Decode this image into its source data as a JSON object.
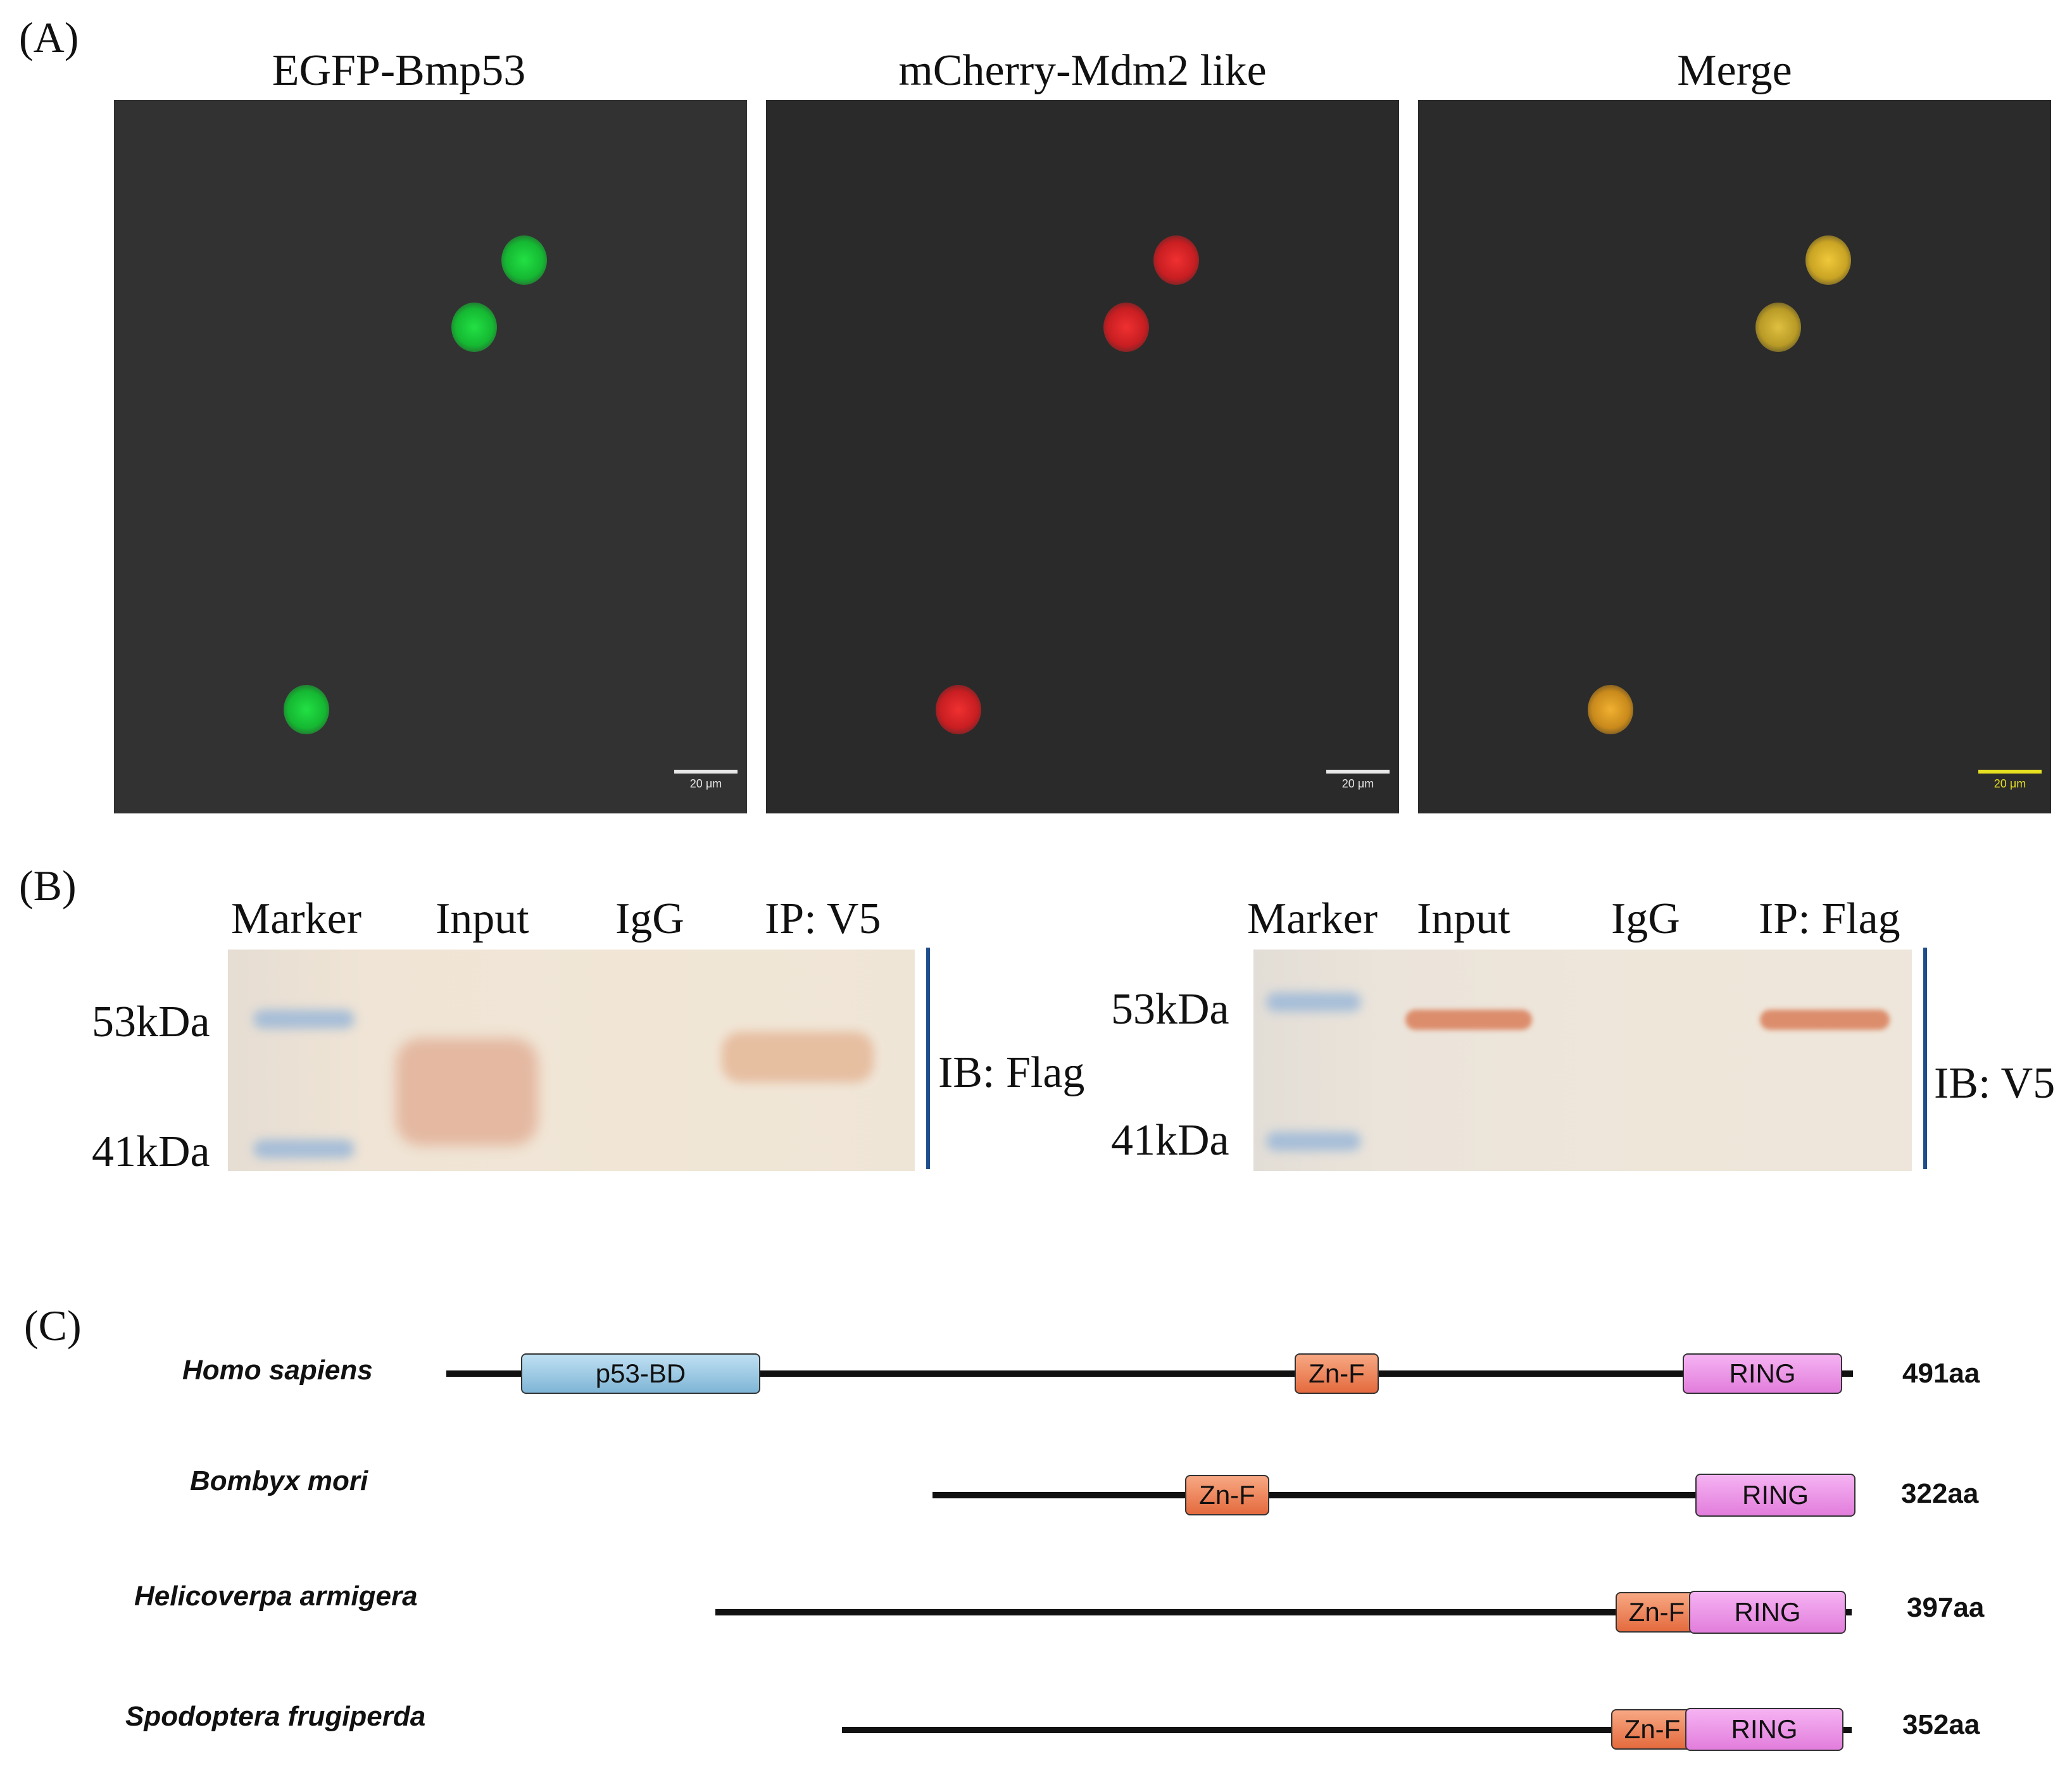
{
  "panels": {
    "a": {
      "label": "(A)",
      "titles": [
        "EGFP-Bmp53",
        "mCherry-Mdm2 like",
        "Merge"
      ],
      "scale_text": "20 μm"
    },
    "b": {
      "label": "(B)",
      "left": {
        "lanes": [
          "Marker",
          "Input",
          "IgG",
          "IP: V5"
        ],
        "markers": [
          "53kDa",
          "41kDa"
        ],
        "ib": "IB: Flag"
      },
      "right": {
        "lanes": [
          "Marker",
          "Input",
          "IgG",
          "IP: Flag"
        ],
        "markers": [
          "53kDa",
          "41kDa"
        ],
        "ib": "IB: V5"
      }
    },
    "c": {
      "label": "(C)",
      "species": [
        {
          "name": "Homo sapiens",
          "length": "491aa",
          "domains": [
            "p53-BD",
            "Zn-F",
            "RING"
          ]
        },
        {
          "name": "Bombyx mori",
          "length": "322aa",
          "domains": [
            "Zn-F",
            "RING"
          ]
        },
        {
          "name": "Helicoverpa armigera",
          "length": "397aa",
          "domains": [
            "Zn-F",
            "RING"
          ]
        },
        {
          "name": "Spodoptera frugiperda",
          "length": "352aa",
          "domains": [
            "Zn-F",
            "RING"
          ]
        }
      ]
    }
  },
  "colors": {
    "egfp": "#1fd640",
    "mcherry": "#e0262a",
    "merge": "#d6b82a",
    "divider": "#1f4e8c"
  }
}
